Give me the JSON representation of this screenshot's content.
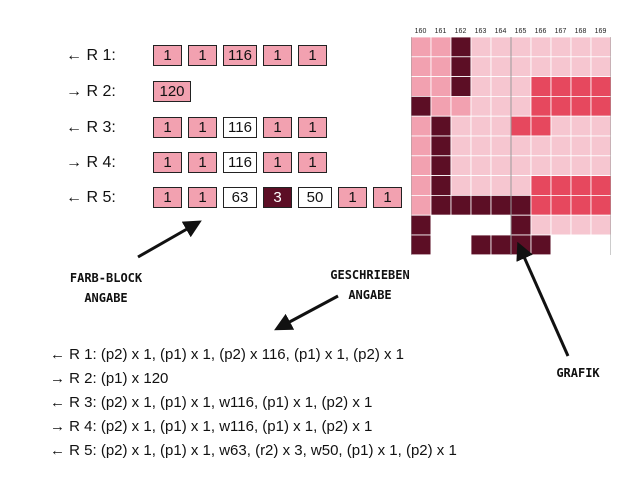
{
  "colors": {
    "pink": "#f2a1b0",
    "light_pink": "#f6c6d0",
    "white": "#ffffff",
    "dark": "#5c0e25",
    "mid": "#e6485e"
  },
  "rows": [
    {
      "label": "← R 1:",
      "cells": [
        {
          "text": "1",
          "color": "pink"
        },
        {
          "text": "1",
          "color": "pink"
        },
        {
          "text": "116",
          "color": "pink"
        },
        {
          "text": "1",
          "color": "pink"
        },
        {
          "text": "1",
          "color": "pink"
        }
      ]
    },
    {
      "label": "→ R 2:",
      "cells": [
        {
          "text": "120",
          "color": "pink"
        }
      ]
    },
    {
      "label": "← R 3:",
      "cells": [
        {
          "text": "1",
          "color": "pink"
        },
        {
          "text": "1",
          "color": "pink"
        },
        {
          "text": "116",
          "color": "white"
        },
        {
          "text": "1",
          "color": "pink"
        },
        {
          "text": "1",
          "color": "pink"
        }
      ]
    },
    {
      "label": "→ R 4:",
      "cells": [
        {
          "text": "1",
          "color": "pink"
        },
        {
          "text": "1",
          "color": "pink"
        },
        {
          "text": "116",
          "color": "white"
        },
        {
          "text": "1",
          "color": "pink"
        },
        {
          "text": "1",
          "color": "pink"
        }
      ]
    },
    {
      "label": "← R 5:",
      "cells": [
        {
          "text": "1",
          "color": "pink"
        },
        {
          "text": "1",
          "color": "pink"
        },
        {
          "text": "63",
          "color": "white"
        },
        {
          "text": "3",
          "color": "dark"
        },
        {
          "text": "50",
          "color": "white"
        },
        {
          "text": "1",
          "color": "pink"
        },
        {
          "text": "1",
          "color": "pink"
        }
      ]
    }
  ],
  "grid": {
    "columns": [
      "160",
      "161",
      "162",
      "163",
      "164",
      "165",
      "166",
      "167",
      "168",
      "169"
    ],
    "rows": [
      "PPDLLLLLLL",
      "PPDLLLLLLL",
      "PPDLLLMMMM",
      "DPPLLLMMMM",
      "PDLLLMMLLL",
      "PDLLLLLLLL",
      "PDLLLLLLLL",
      "PDLLLLMMMM",
      "PDDDDDMMMM",
      "DWWWWDLLLL",
      "DWWDDDDWWW"
    ]
  },
  "annotations": {
    "color_block": [
      "FARB-BLOCK",
      "ANGABE"
    ],
    "written": [
      "GESCHRIEBEN",
      "ANGABE"
    ],
    "chart": "GRAFIK"
  },
  "written_rows": [
    "← R 1: (p2) x 1, (p1) x 1, (p2) x 116, (p1) x 1, (p2) x 1",
    "→ R 2: (p1) x 120",
    "← R 3: (p2) x 1, (p1) x 1, w116, (p1) x 1, (p2) x 1",
    "→ R 4: (p2) x 1, (p1) x 1, w116, (p1) x 1, (p2) x 1",
    "← R 5: (p2) x 1, (p1) x 1, w63, (r2) x 3, w50, (p1) x 1, (p2) x 1"
  ]
}
